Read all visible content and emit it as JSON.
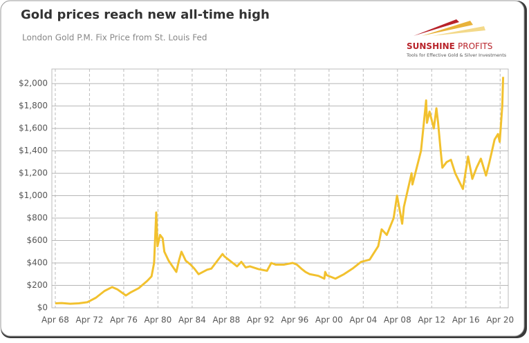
{
  "chart_data": {
    "type": "line",
    "title": "Gold prices reach new all-time high",
    "subtitle": "London Gold P.M. Fix Price from St. Louis Fed",
    "logo_name": "SUNSHINE",
    "logo_name_2": "PROFITS",
    "logo_tagline": "Tools for Effective Gold & Silver Investments",
    "grid": true,
    "xlim": [
      1967.85,
      2021.2
    ],
    "ylim": [
      0,
      2130
    ],
    "xticks": [
      {
        "value": 1968.25,
        "label": "Apr 68"
      },
      {
        "value": 1972.25,
        "label": "Apr 72"
      },
      {
        "value": 1976.25,
        "label": "Apr 76"
      },
      {
        "value": 1980.25,
        "label": "Apr 80"
      },
      {
        "value": 1984.25,
        "label": "Apr 84"
      },
      {
        "value": 1988.25,
        "label": "Apr 88"
      },
      {
        "value": 1992.25,
        "label": "Apr 92"
      },
      {
        "value": 1996.25,
        "label": "Apr 96"
      },
      {
        "value": 2000.25,
        "label": "Apr 00"
      },
      {
        "value": 2004.25,
        "label": "Apr 04"
      },
      {
        "value": 2008.25,
        "label": "Apr 08"
      },
      {
        "value": 2012.25,
        "label": "Apr 12"
      },
      {
        "value": 2016.25,
        "label": "Apr 16"
      },
      {
        "value": 2020.25,
        "label": "Apr 20"
      }
    ],
    "yticks": [
      {
        "value": 0,
        "label": "$0"
      },
      {
        "value": 200,
        "label": "$200"
      },
      {
        "value": 400,
        "label": "$400"
      },
      {
        "value": 600,
        "label": "$600"
      },
      {
        "value": 800,
        "label": "$800"
      },
      {
        "value": 1000,
        "label": "$1,000"
      },
      {
        "value": 1200,
        "label": "$1,200"
      },
      {
        "value": 1400,
        "label": "$1,400"
      },
      {
        "value": 1600,
        "label": "$1,600"
      },
      {
        "value": 1800,
        "label": "$1,800"
      },
      {
        "value": 2000,
        "label": "$2,000"
      }
    ],
    "x": [
      1968.25,
      1969,
      1970,
      1971,
      1972,
      1973,
      1974,
      1974.9,
      1975.5,
      1976.5,
      1977,
      1978,
      1979,
      1979.5,
      1979.8,
      1980.05,
      1980.2,
      1980.5,
      1980.8,
      1981,
      1981.5,
      1982.4,
      1982.7,
      1983,
      1983.5,
      1984,
      1984.5,
      1985,
      1985.5,
      1986,
      1986.5,
      1987,
      1987.8,
      1988,
      1988.5,
      1989,
      1989.5,
      1990,
      1990.5,
      1991,
      1992,
      1993,
      1993.5,
      1994,
      1995,
      1996,
      1996.5,
      1997,
      1997.5,
      1998,
      1999,
      1999.7,
      1999.8,
      2000,
      2001,
      2002,
      2003,
      2004,
      2005,
      2006,
      2006.4,
      2007,
      2007.8,
      2008.2,
      2008.8,
      2009,
      2009.9,
      2010,
      2010.5,
      2011,
      2011.6,
      2011.7,
      2012,
      2012.5,
      2012.8,
      2013,
      2013.3,
      2013.5,
      2014,
      2014.5,
      2015,
      2015.9,
      2016.5,
      2017,
      2017.5,
      2018,
      2018.6,
      2019,
      2019.6,
      2020,
      2020.2,
      2020.5,
      2020.6
    ],
    "series": [
      {
        "color": "#f2c12e",
        "values": [
          40,
          42,
          36,
          40,
          50,
          90,
          150,
          185,
          165,
          110,
          135,
          175,
          240,
          280,
          400,
          850,
          550,
          650,
          620,
          500,
          420,
          320,
          420,
          500,
          420,
          390,
          350,
          300,
          320,
          340,
          350,
          400,
          480,
          460,
          430,
          400,
          370,
          410,
          360,
          370,
          345,
          330,
          400,
          385,
          385,
          400,
          385,
          350,
          320,
          300,
          285,
          260,
          320,
          290,
          260,
          300,
          350,
          410,
          430,
          550,
          700,
          650,
          800,
          1000,
          750,
          900,
          1200,
          1100,
          1250,
          1400,
          1850,
          1650,
          1750,
          1600,
          1780,
          1650,
          1400,
          1250,
          1300,
          1320,
          1200,
          1060,
          1350,
          1150,
          1250,
          1330,
          1180,
          1300,
          1500,
          1550,
          1480,
          1800,
          2060
        ]
      }
    ]
  }
}
